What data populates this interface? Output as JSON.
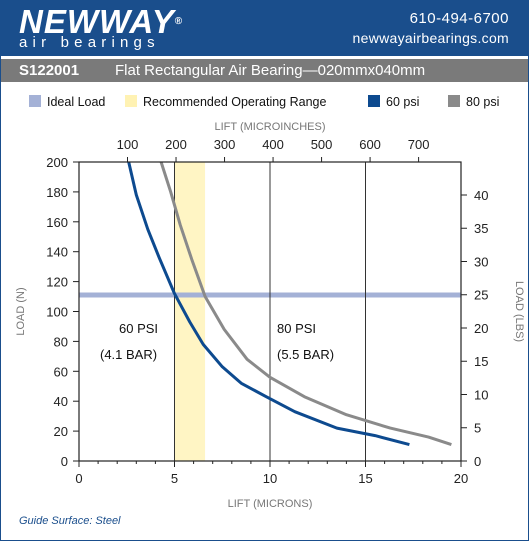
{
  "header": {
    "brand": "NEWWAY",
    "reg": "®",
    "tagline": "air bearings",
    "phone": "610-494-6700",
    "website": "newwayairbearings.com"
  },
  "title": {
    "part_number": "S122001",
    "name": "Flat Rectangular Air Bearing—020mmx040mm"
  },
  "colors": {
    "brand_blue": "#1a4e8c",
    "series_60": "#0d4a8f",
    "series_80": "#8a8a8a",
    "ideal_load": "#a4b1d6",
    "recommended_range": "#fff5c4"
  },
  "legend": {
    "ideal_load": "Ideal Load",
    "recommended": "Recommended Operating Range",
    "s60": "60 psi",
    "s80": "80 psi"
  },
  "footnote": "Guide Surface: Steel",
  "chart_data": {
    "type": "line",
    "xlabel": "LIFT (MICRONS)",
    "x2label": "LIFT (MICROINCHES)",
    "ylabel": "LOAD (N)",
    "y2label": "LOAD (LBS)",
    "xlim": [
      0,
      20
    ],
    "ylim": [
      0,
      200
    ],
    "x_ticks": [
      "0",
      "5",
      "10",
      "15",
      "20"
    ],
    "y_ticks": [
      "0",
      "20",
      "40",
      "60",
      "80",
      "100",
      "120",
      "140",
      "160",
      "180",
      "200"
    ],
    "x2_ticks": [
      "100",
      "200",
      "300",
      "400",
      "500",
      "600",
      "700"
    ],
    "y2_ticks": [
      "0",
      "5",
      "10",
      "15",
      "20",
      "25",
      "30",
      "35",
      "40"
    ],
    "ideal_load": 111,
    "recommended_range": [
      5,
      6.6
    ],
    "annotations": {
      "s60_a": "60 PSI",
      "s60_b": "(4.1 BAR)",
      "s80_a": "80 PSI",
      "s80_b": "(5.5 BAR)"
    },
    "series": [
      {
        "name": "60 psi",
        "x": [
          2.6,
          3.0,
          3.6,
          4.2,
          5.0,
          5.8,
          6.5,
          7.5,
          8.5,
          9.8,
          11.3,
          13.5,
          15.5,
          17.3
        ],
        "y": [
          200,
          178,
          155,
          136,
          112,
          93,
          78,
          63,
          52,
          43,
          33,
          22,
          17,
          11
        ]
      },
      {
        "name": "80 psi",
        "x": [
          4.3,
          4.8,
          5.3,
          5.9,
          6.6,
          7.6,
          8.8,
          10.0,
          11.8,
          14.0,
          16.3,
          18.3,
          19.5
        ],
        "y": [
          200,
          180,
          158,
          135,
          110,
          88,
          68,
          56,
          43,
          31,
          22,
          16,
          11
        ]
      }
    ]
  }
}
